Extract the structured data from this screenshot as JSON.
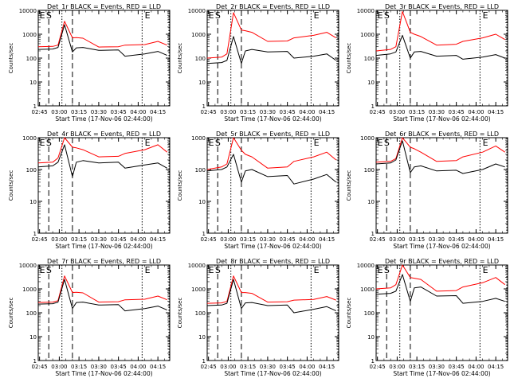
{
  "figure": {
    "xlabel": "Start Time (17-Nov-06 02:44:00)",
    "ylabel": "Counts/sec",
    "x_tick_labels": [
      "02:45",
      "03:00",
      "03:15",
      "03:30",
      "03:45",
      "04:00",
      "04:15"
    ],
    "y_tick_labels": [
      "1",
      "10",
      "100",
      "1000",
      "10000"
    ],
    "flag_labels": {
      "E": "E",
      "S": "S"
    }
  },
  "colors": {
    "events": "#000000",
    "lld": "#ff0000"
  },
  "chart_data": [
    {
      "type": "line",
      "title": "Det_1r BLACK = Events, RED = LLD",
      "xlim": [
        "02:44",
        "04:24"
      ],
      "ylim": [
        1,
        10000
      ],
      "yscale": "log",
      "grid": false,
      "dashed_lines_x": [
        "02:52",
        "03:10"
      ],
      "dotted_lines_x": [
        "03:02",
        "04:03",
        "04:24"
      ],
      "flags": [
        {
          "label": "E",
          "x": "02:45"
        },
        {
          "label": "S",
          "x": "02:50"
        },
        {
          "label": "E",
          "x": "04:05"
        }
      ],
      "series": [
        {
          "color": "#000000",
          "x": [
            "02:44",
            "02:55",
            "02:59",
            "03:04",
            "03:10",
            "03:13",
            "03:18",
            "03:30",
            "03:45",
            "03:50",
            "04:05",
            "04:15",
            "04:22"
          ],
          "values": [
            230,
            240,
            280,
            2500,
            180,
            270,
            280,
            210,
            220,
            120,
            150,
            190,
            130
          ]
        },
        {
          "color": "#ff0000",
          "x": [
            "02:44",
            "02:55",
            "02:59",
            "03:04",
            "03:10",
            "03:13",
            "03:18",
            "03:30",
            "03:45",
            "03:50",
            "04:05",
            "04:15",
            "04:22"
          ],
          "values": [
            300,
            310,
            350,
            3500,
            700,
            720,
            680,
            290,
            300,
            350,
            370,
            500,
            350
          ]
        }
      ]
    },
    {
      "type": "line",
      "title": "Det_2r BLACK = Events, RED = LLD",
      "xlim": [
        "02:44",
        "04:24"
      ],
      "ylim": [
        1,
        10000
      ],
      "yscale": "log",
      "grid": false,
      "dashed_lines_x": [
        "02:52",
        "03:10"
      ],
      "dotted_lines_x": [
        "03:02",
        "04:03",
        "04:24"
      ],
      "flags": [
        {
          "label": "E",
          "x": "02:45"
        },
        {
          "label": "S",
          "x": "02:50"
        },
        {
          "label": "E",
          "x": "04:05"
        }
      ],
      "series": [
        {
          "color": "#000000",
          "x": [
            "02:44",
            "02:55",
            "02:59",
            "03:04",
            "03:10",
            "03:13",
            "03:18",
            "03:30",
            "03:45",
            "03:50",
            "04:05",
            "04:15",
            "04:22"
          ],
          "values": [
            60,
            65,
            80,
            800,
            60,
            200,
            230,
            180,
            190,
            100,
            120,
            150,
            80
          ]
        },
        {
          "color": "#ff0000",
          "x": [
            "02:44",
            "02:55",
            "02:59",
            "03:04",
            "03:10",
            "03:13",
            "03:18",
            "03:30",
            "03:45",
            "03:50",
            "04:05",
            "04:15",
            "04:22"
          ],
          "values": [
            100,
            110,
            150,
            8000,
            1500,
            1400,
            1200,
            500,
            520,
            700,
            900,
            1200,
            700
          ]
        }
      ]
    },
    {
      "type": "line",
      "title": "Det_3r BLACK = Events, RED = LLD",
      "xlim": [
        "02:44",
        "04:24"
      ],
      "ylim": [
        1,
        10000
      ],
      "yscale": "log",
      "grid": false,
      "dashed_lines_x": [
        "02:52",
        "03:10"
      ],
      "dotted_lines_x": [
        "03:02",
        "04:03",
        "04:24"
      ],
      "flags": [
        {
          "label": "E",
          "x": "02:45"
        },
        {
          "label": "S",
          "x": "02:50"
        },
        {
          "label": "E",
          "x": "04:05"
        }
      ],
      "series": [
        {
          "color": "#000000",
          "x": [
            "02:44",
            "02:55",
            "02:59",
            "03:04",
            "03:10",
            "03:13",
            "03:18",
            "03:30",
            "03:45",
            "03:50",
            "04:05",
            "04:15",
            "04:22"
          ],
          "values": [
            130,
            150,
            180,
            900,
            100,
            180,
            190,
            120,
            130,
            90,
            110,
            140,
            100
          ]
        },
        {
          "color": "#ff0000",
          "x": [
            "02:44",
            "02:55",
            "02:59",
            "03:04",
            "03:10",
            "03:13",
            "03:18",
            "03:30",
            "03:45",
            "03:50",
            "04:05",
            "04:15",
            "04:22"
          ],
          "values": [
            200,
            230,
            300,
            9000,
            1200,
            1000,
            800,
            350,
            380,
            500,
            700,
            1000,
            600
          ]
        }
      ]
    },
    {
      "type": "line",
      "title": "Det_4r BLACK = Events, RED = LLD",
      "xlim": [
        "02:44",
        "04:24"
      ],
      "ylim": [
        1,
        1000
      ],
      "yscale": "log",
      "grid": false,
      "dashed_lines_x": [
        "02:52",
        "03:10"
      ],
      "dotted_lines_x": [
        "03:02",
        "04:03",
        "04:24"
      ],
      "flags": [
        {
          "label": "E",
          "x": "02:45"
        },
        {
          "label": "S",
          "x": "02:50"
        },
        {
          "label": "E",
          "x": "04:05"
        }
      ],
      "series": [
        {
          "color": "#000000",
          "x": [
            "02:44",
            "02:55",
            "02:59",
            "03:04",
            "03:10",
            "03:13",
            "03:18",
            "03:30",
            "03:45",
            "03:50",
            "04:05",
            "04:15",
            "04:22"
          ],
          "values": [
            120,
            130,
            170,
            600,
            60,
            170,
            190,
            160,
            170,
            110,
            140,
            160,
            110
          ]
        },
        {
          "color": "#ff0000",
          "x": [
            "02:44",
            "02:55",
            "02:59",
            "03:04",
            "03:10",
            "03:13",
            "03:18",
            "03:30",
            "03:45",
            "03:50",
            "04:05",
            "04:15",
            "04:22"
          ],
          "values": [
            160,
            170,
            230,
            1000,
            500,
            480,
            420,
            250,
            260,
            320,
            420,
            600,
            350
          ]
        }
      ]
    },
    {
      "type": "line",
      "title": "Det_5r BLACK = Events, RED = LLD",
      "xlim": [
        "02:44",
        "04:24"
      ],
      "ylim": [
        1,
        1000
      ],
      "yscale": "log",
      "grid": false,
      "dashed_lines_x": [
        "02:52",
        "03:10"
      ],
      "dotted_lines_x": [
        "03:02",
        "04:03",
        "04:24"
      ],
      "flags": [
        {
          "label": "E",
          "x": "02:45"
        },
        {
          "label": "S",
          "x": "02:50"
        },
        {
          "label": "E",
          "x": "04:05"
        }
      ],
      "series": [
        {
          "color": "#000000",
          "x": [
            "02:44",
            "02:55",
            "02:59",
            "03:04",
            "03:10",
            "03:13",
            "03:18",
            "03:30",
            "03:45",
            "03:50",
            "04:05",
            "04:15",
            "04:22"
          ],
          "values": [
            90,
            100,
            120,
            300,
            40,
            90,
            100,
            60,
            65,
            35,
            50,
            70,
            40
          ]
        },
        {
          "color": "#ff0000",
          "x": [
            "02:44",
            "02:55",
            "02:59",
            "03:04",
            "03:10",
            "03:13",
            "03:18",
            "03:30",
            "03:45",
            "03:50",
            "04:05",
            "04:15",
            "04:22"
          ],
          "values": [
            100,
            120,
            150,
            1000,
            400,
            300,
            250,
            110,
            120,
            180,
            250,
            350,
            200
          ]
        }
      ]
    },
    {
      "type": "line",
      "title": "Det_6r BLACK = Events, RED = LLD",
      "xlim": [
        "02:44",
        "04:24"
      ],
      "ylim": [
        1,
        1000
      ],
      "yscale": "log",
      "grid": false,
      "dashed_lines_x": [
        "02:52",
        "03:10"
      ],
      "dotted_lines_x": [
        "03:02",
        "04:03",
        "04:24"
      ],
      "flags": [
        {
          "label": "E",
          "x": "02:45"
        },
        {
          "label": "S",
          "x": "02:50"
        },
        {
          "label": "E",
          "x": "04:05"
        }
      ],
      "series": [
        {
          "color": "#000000",
          "x": [
            "02:44",
            "02:55",
            "02:59",
            "03:04",
            "03:10",
            "03:13",
            "03:18",
            "03:30",
            "03:45",
            "03:50",
            "04:05",
            "04:15",
            "04:22"
          ],
          "values": [
            150,
            160,
            200,
            800,
            80,
            120,
            130,
            90,
            95,
            75,
            100,
            150,
            120
          ]
        },
        {
          "color": "#ff0000",
          "x": [
            "02:44",
            "02:55",
            "02:59",
            "03:04",
            "03:10",
            "03:13",
            "03:18",
            "03:30",
            "03:45",
            "03:50",
            "04:05",
            "04:15",
            "04:22"
          ],
          "values": [
            170,
            180,
            220,
            1000,
            500,
            450,
            350,
            180,
            190,
            250,
            350,
            550,
            350
          ]
        }
      ]
    },
    {
      "type": "line",
      "title": "Det_7r BLACK = Events, RED = LLD",
      "xlim": [
        "02:44",
        "04:24"
      ],
      "ylim": [
        1,
        10000
      ],
      "yscale": "log",
      "grid": false,
      "dashed_lines_x": [
        "02:52",
        "03:10"
      ],
      "dotted_lines_x": [
        "03:02",
        "04:03",
        "04:24"
      ],
      "flags": [
        {
          "label": "E",
          "x": "02:45"
        },
        {
          "label": "S",
          "x": "02:50"
        },
        {
          "label": "E",
          "x": "04:05"
        }
      ],
      "series": [
        {
          "color": "#000000",
          "x": [
            "02:44",
            "02:55",
            "02:59",
            "03:04",
            "03:10",
            "03:13",
            "03:18",
            "03:30",
            "03:45",
            "03:50",
            "04:05",
            "04:15",
            "04:22"
          ],
          "values": [
            230,
            240,
            280,
            2500,
            150,
            270,
            280,
            210,
            220,
            120,
            150,
            190,
            130
          ]
        },
        {
          "color": "#ff0000",
          "x": [
            "02:44",
            "02:55",
            "02:59",
            "03:04",
            "03:10",
            "03:13",
            "03:18",
            "03:30",
            "03:45",
            "03:50",
            "04:05",
            "04:15",
            "04:22"
          ],
          "values": [
            270,
            280,
            320,
            3500,
            700,
            720,
            680,
            280,
            290,
            350,
            370,
            500,
            350
          ]
        }
      ]
    },
    {
      "type": "line",
      "title": "Det_8r BLACK = Events, RED = LLD",
      "xlim": [
        "02:44",
        "04:24"
      ],
      "ylim": [
        1,
        10000
      ],
      "yscale": "log",
      "grid": false,
      "dashed_lines_x": [
        "02:52",
        "03:10"
      ],
      "dotted_lines_x": [
        "03:02",
        "04:03",
        "04:24"
      ],
      "flags": [
        {
          "label": "E",
          "x": "02:45"
        },
        {
          "label": "S",
          "x": "02:50"
        },
        {
          "label": "E",
          "x": "04:05"
        }
      ],
      "series": [
        {
          "color": "#000000",
          "x": [
            "02:44",
            "02:55",
            "02:59",
            "03:04",
            "03:10",
            "03:13",
            "03:18",
            "03:30",
            "03:45",
            "03:50",
            "04:05",
            "04:15",
            "04:22"
          ],
          "values": [
            200,
            210,
            250,
            2500,
            150,
            260,
            270,
            200,
            210,
            100,
            140,
            180,
            120
          ]
        },
        {
          "color": "#ff0000",
          "x": [
            "02:44",
            "02:55",
            "02:59",
            "03:04",
            "03:10",
            "03:13",
            "03:18",
            "03:30",
            "03:45",
            "03:50",
            "04:05",
            "04:15",
            "04:22"
          ],
          "values": [
            250,
            260,
            300,
            3500,
            700,
            700,
            650,
            280,
            290,
            340,
            360,
            480,
            340
          ]
        }
      ]
    },
    {
      "type": "line",
      "title": "Det_9r BLACK = Events, RED = LLD",
      "xlim": [
        "02:44",
        "04:24"
      ],
      "ylim": [
        1,
        10000
      ],
      "yscale": "log",
      "grid": false,
      "dashed_lines_x": [
        "02:52",
        "03:10"
      ],
      "dotted_lines_x": [
        "03:02",
        "04:03",
        "04:24"
      ],
      "flags": [
        {
          "label": "E",
          "x": "02:45"
        },
        {
          "label": "S",
          "x": "02:50"
        },
        {
          "label": "E",
          "x": "04:05"
        }
      ],
      "series": [
        {
          "color": "#000000",
          "x": [
            "02:44",
            "02:55",
            "02:59",
            "03:04",
            "03:10",
            "03:13",
            "03:18",
            "03:30",
            "03:45",
            "03:50",
            "04:05",
            "04:15",
            "04:22"
          ],
          "values": [
            600,
            650,
            800,
            4000,
            300,
            1100,
            1200,
            500,
            520,
            250,
            300,
            400,
            300
          ]
        },
        {
          "color": "#ff0000",
          "x": [
            "02:44",
            "02:55",
            "02:59",
            "03:04",
            "03:10",
            "03:13",
            "03:18",
            "03:30",
            "03:45",
            "03:50",
            "04:05",
            "04:15",
            "04:22"
          ],
          "values": [
            1000,
            1100,
            1500,
            10000,
            3000,
            2800,
            2500,
            800,
            850,
            1200,
            1800,
            3000,
            1500
          ]
        }
      ]
    }
  ]
}
